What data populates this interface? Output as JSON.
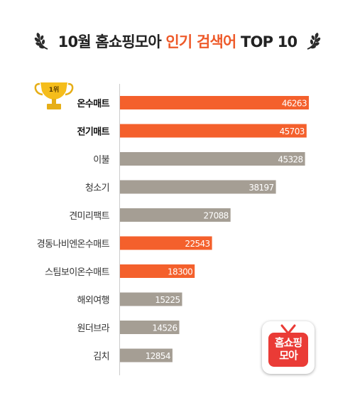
{
  "header": {
    "title_part1": "10월 홈쇼핑모아 ",
    "title_highlight": "인기 검색어",
    "title_part2": " TOP 10"
  },
  "badge": {
    "first_place": "1위"
  },
  "logo": {
    "line1": "홈쇼핑",
    "line2": "모아"
  },
  "colors": {
    "highlight": "#f4602c",
    "normal": "#a59e94",
    "title_accent": "#ee5a2a",
    "logo_red": "#ea3b36"
  },
  "chart_data": {
    "type": "bar",
    "orientation": "horizontal",
    "categories": [
      "온수매트",
      "전기매트",
      "이불",
      "청소기",
      "견미리팩트",
      "경동나비엔온수매트",
      "스팀보이온수매트",
      "해외여행",
      "원더브라",
      "김치"
    ],
    "values": [
      46263,
      45703,
      45328,
      38197,
      27088,
      22543,
      18300,
      15225,
      14526,
      12854
    ],
    "highlighted": [
      true,
      true,
      false,
      false,
      false,
      true,
      true,
      false,
      false,
      false
    ],
    "bold_labels": [
      true,
      true,
      false,
      false,
      false,
      false,
      false,
      false,
      false,
      false
    ],
    "xlim": [
      0,
      46263
    ],
    "grid": false,
    "legend": "none"
  }
}
